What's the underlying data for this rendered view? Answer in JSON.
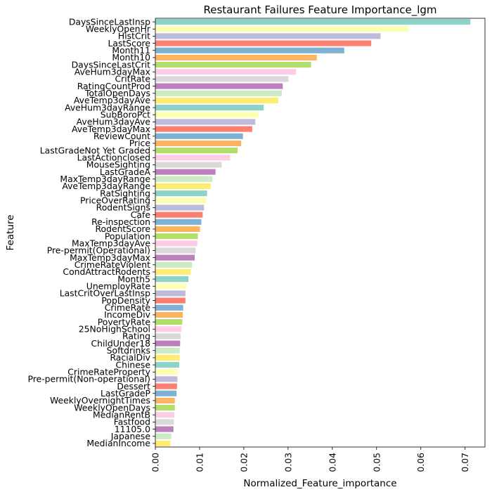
{
  "chart_data": {
    "type": "bar",
    "orientation": "horizontal",
    "title": "Restaurant Failures Feature Importance_lgm",
    "xlabel": "Normalized_Feature_importance",
    "ylabel": "Feature",
    "xlim": [
      0,
      0.0745
    ],
    "xticks": [
      "0.00",
      "0.01",
      "0.02",
      "0.03",
      "0.04",
      "0.05",
      "0.06",
      "0.07"
    ],
    "palette": [
      "#8dd3c7",
      "#ffffb3",
      "#bebada",
      "#fb8072",
      "#80b1d3",
      "#fdb462",
      "#b3de69",
      "#fccde5",
      "#d9d9d9",
      "#bc80bd",
      "#ccebc5",
      "#ffed6f"
    ],
    "categories": [
      "DaysSinceLastInsp",
      "WeeklyOpenHr",
      "HistCrit",
      "LastScore",
      "Month11",
      "Month10",
      "DaysSinceLastCrit",
      "AveHum3dayMax",
      "CritRate",
      "RatingCountProd",
      "TotalOpenDays",
      "AveTemp3dayAve",
      "AveHum3dayRange",
      "SubBoroPct",
      "AveHum3dayAve",
      "AveTemp3dayMax",
      "ReviewCount",
      "Price",
      "LastGradeNot Yet Graded",
      "LastActionclosed",
      "MouseSighting",
      "LastGradeA",
      "MaxTemp3dayRange",
      "AveTemp3dayRange",
      "RatSighting",
      "PriceOverRating",
      "RodentSigns",
      "Cafe",
      "Re-inspection",
      "RodentScore",
      "Population",
      "MaxTemp3dayAve",
      "Pre-permit(Operational)",
      "MaxTemp3dayMax",
      "CrimeRateViolent",
      "CondAttractRodents",
      "Month5",
      "UnemployRate",
      "LastCritOverLastInsp",
      "PopDensity",
      "CrimeRate",
      "IncomeDiv",
      "PovertyRate",
      "25NoHighSchool",
      "Rating",
      "ChildUnder18",
      "Softdrinks",
      "RacialDiv",
      "Chinese",
      "CrimeRateProperty",
      "Pre-permit(Non-operational)",
      "Dessert",
      "LastGradeP",
      "WeeklyOvernightTimes",
      "WeeklyOpenDays",
      "MedianRentB",
      "Fastfood",
      "11105.0",
      "Japanese",
      "MedianIncome"
    ],
    "values": [
      0.0712,
      0.0572,
      0.0509,
      0.0488,
      0.0427,
      0.0365,
      0.0352,
      0.0318,
      0.0301,
      0.0288,
      0.0286,
      0.0278,
      0.0245,
      0.0233,
      0.0226,
      0.0219,
      0.0198,
      0.0194,
      0.0186,
      0.0169,
      0.015,
      0.0136,
      0.0129,
      0.0125,
      0.0117,
      0.0116,
      0.011,
      0.0107,
      0.0104,
      0.0101,
      0.0096,
      0.0095,
      0.0091,
      0.0089,
      0.0083,
      0.008,
      0.0075,
      0.007,
      0.0068,
      0.0068,
      0.0063,
      0.0062,
      0.0061,
      0.0059,
      0.0057,
      0.0056,
      0.0055,
      0.0055,
      0.0054,
      0.0051,
      0.005,
      0.0049,
      0.0048,
      0.0044,
      0.0044,
      0.0043,
      0.0042,
      0.0041,
      0.0036,
      0.0034
    ],
    "grid": false,
    "legend": "none"
  }
}
